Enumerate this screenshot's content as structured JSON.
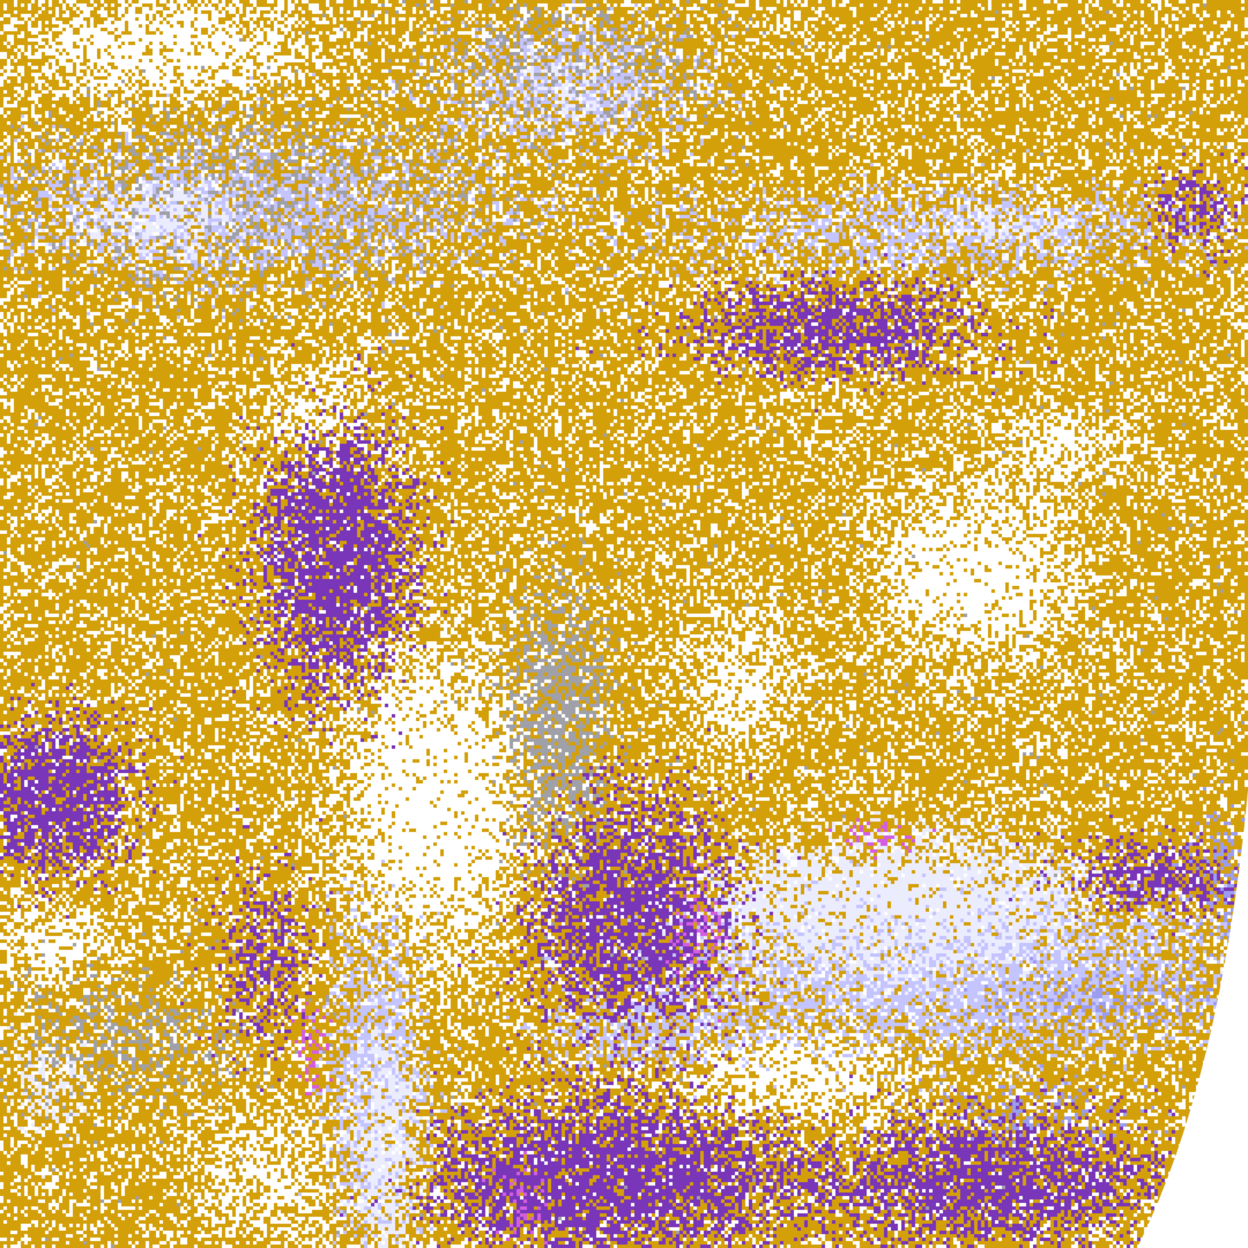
{
  "image": {
    "kind": "satellite cloud-classification composite",
    "palette": {
      "clear": "#ffffff",
      "low_cloud": "#d4a00a",
      "deep_cloud": "#7a36b8",
      "convective": "#d45ee0",
      "high_thin": "#c4c4ff",
      "high_thick": "#ececff",
      "mid": "#9c9cf0",
      "coast_gray": "#a0a0a8"
    }
  }
}
